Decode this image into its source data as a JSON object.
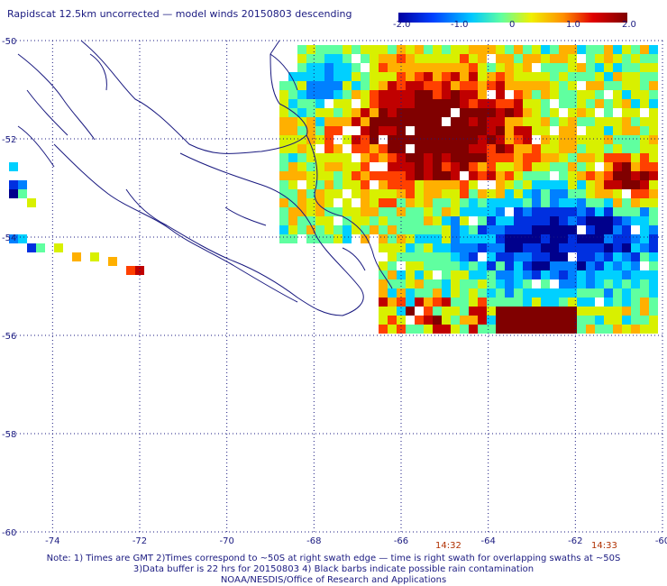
{
  "title": "Rapidscat 12.5km uncorrected — model winds 20150803 descending",
  "colorbar": {
    "labels": [
      "-2.0",
      "-1.0",
      "0",
      "1.0",
      "2.0"
    ],
    "colors": [
      "#0000a0",
      "#0040ff",
      "#00c8ff",
      "#60ffa0",
      "#f0f000",
      "#ff9000",
      "#e00000",
      "#800000"
    ]
  },
  "map": {
    "lon_ticks": [
      "-74",
      "-72",
      "-70",
      "-68",
      "-66",
      "-64",
      "-62",
      "-60"
    ],
    "lat_ticks": [
      "-50",
      "-52",
      "-54",
      "-56",
      "-58",
      "-60"
    ],
    "lon_range": [
      -75,
      -60
    ],
    "lat_range": [
      -60,
      -50
    ],
    "grid": true,
    "coast_color": "#1a1a80",
    "grid_color": "#1a1a80"
  },
  "swath_times": [
    "14:32",
    "14:33"
  ],
  "notes": [
    "Note: 1) Times are GMT 2)Times correspond to ~50S at right swath edge — time is right swath for overlapping swaths at ~50S",
    "3)Data buffer is 22 hrs for 20150803 4) Black barbs indicate possible rain contamination",
    "NOAA/NESDIS/Office of Research and Applications"
  ]
}
